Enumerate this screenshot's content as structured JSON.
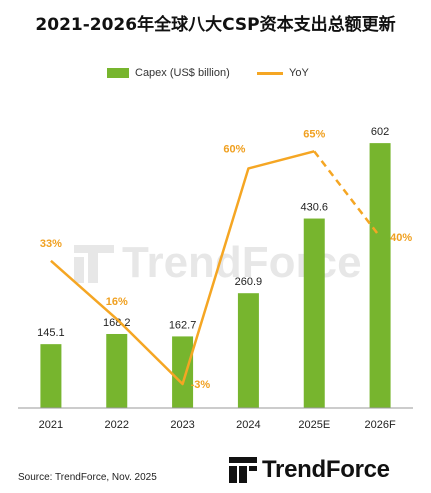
{
  "title": "2021-2026年全球八大CSP资本支出总额更新",
  "legend": {
    "bar_label": "Capex (US$ billion)",
    "line_label": "YoY"
  },
  "source": "Source: TrendForce, Nov. 2025",
  "logo": {
    "text": "TrendForce",
    "icon": "trendforce-logo-icon"
  },
  "watermark": {
    "text": "TrendForce"
  },
  "colors": {
    "bar": "#77b52e",
    "line": "#f5a623",
    "yoy_text": "#f0a020"
  },
  "chart_data": {
    "type": "bar",
    "categories": [
      "2021",
      "2022",
      "2023",
      "2024",
      "2025E",
      "2026F"
    ],
    "series": [
      {
        "name": "Capex (US$ billion)",
        "type": "bar",
        "values": [
          145.1,
          168.2,
          162.7,
          260.9,
          430.6,
          602
        ],
        "value_labels": [
          "145.1",
          "168.2",
          "162.7",
          "260.9",
          "430.6",
          "602"
        ]
      },
      {
        "name": "YoY",
        "type": "line",
        "unit": "%",
        "values": [
          33,
          16,
          -3,
          60,
          65,
          40
        ],
        "value_labels": [
          "33%",
          "16%",
          "-3%",
          "60%",
          "65%",
          "40%"
        ],
        "dashed_from_index": 4
      }
    ],
    "xlabel": "",
    "ylabel": "",
    "ylim": [
      0,
      700
    ],
    "y2lim": [
      -10,
      80
    ],
    "grid": false,
    "legend_position": "top-center"
  }
}
